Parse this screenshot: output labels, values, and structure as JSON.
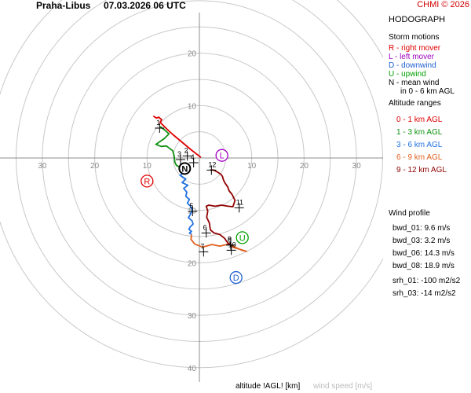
{
  "header": {
    "station": "Praha-Libus",
    "datetime": "07.03.2026 06 UTC",
    "credit": "CHMI © 2026"
  },
  "legend": {
    "title": "HODOGRAPH",
    "storm_motions_title": "Storm motions",
    "storm_motions": [
      {
        "text": "R - right mover",
        "color": "#e00000"
      },
      {
        "text": "L - left mover",
        "color": "#a000c0"
      },
      {
        "text": "D - downwind",
        "color": "#2060d0"
      },
      {
        "text": "U - upwind",
        "color": "#00a000"
      },
      {
        "text": "N - mean wind",
        "color": "#000000"
      },
      {
        "text": "in 0 - 6 km AGL",
        "color": "#000000"
      }
    ],
    "altitude_ranges_title": "Altitude ranges",
    "altitude_ranges": [
      {
        "text": "0 - 1 km AGL",
        "color": "#e00000"
      },
      {
        "text": "1 - 3 km AGL",
        "color": "#109010"
      },
      {
        "text": "3 - 6 km AGL",
        "color": "#2070e0"
      },
      {
        "text": "6 - 9 km AGL",
        "color": "#e06020"
      },
      {
        "text": "9 - 12 km AGL",
        "color": "#900000"
      }
    ]
  },
  "wind_profile": {
    "title": "Wind profile",
    "items": [
      "bwd_01: 9.6 m/s",
      "bwd_03: 3.2 m/s",
      "bwd_06: 14.3 m/s",
      "bwd_08: 18.9 m/s",
      "srh_01: -100 m2/s2",
      "srh_03: -14 m2/s2"
    ]
  },
  "footer": {
    "altitude_label": "altitude !AGL! [km]",
    "speed_label": "wind speed [m/s]"
  },
  "chart_data": {
    "type": "scatter",
    "title": "HODOGRAPH",
    "xlabel": "",
    "ylabel": "",
    "rings": [
      5,
      10,
      15,
      20,
      25,
      30,
      35,
      40
    ],
    "ring_labels": [
      10,
      20,
      30,
      40
    ],
    "x_tick_labels": [
      "30",
      "20",
      "10",
      "10",
      "20",
      "30"
    ],
    "x_tick_values": [
      -30,
      -20,
      -10,
      10,
      20,
      30
    ],
    "y_tick_labels": [
      "20",
      "10",
      "10",
      "20",
      "30",
      "40"
    ],
    "y_tick_values": [
      20,
      10,
      -10,
      -20,
      -30,
      -40
    ],
    "xlim": [
      -38,
      38
    ],
    "ylim": [
      -41,
      30
    ],
    "grid": true,
    "segments": [
      {
        "name": "0 - 1 km AGL",
        "color": "#e00000",
        "u": [
          0.3,
          -1.5,
          -3.3,
          -5.1,
          -6.3,
          -6.9,
          -7.5,
          -7.2,
          -7.8,
          -8.2,
          -8.8
        ],
        "v": [
          0.1,
          1.5,
          3.0,
          4.5,
          5.6,
          6.2,
          6.8,
          7.3,
          7.8,
          7.6,
          8.0
        ]
      },
      {
        "name": "1 - 3 km AGL",
        "color": "#109010",
        "u": [
          -7.5,
          -6.6,
          -5.8,
          -6.7,
          -8.3,
          -7.3,
          -6.3,
          -5.8,
          -5.1,
          -4.8,
          -4.7,
          -4.4,
          -3.5
        ],
        "v": [
          6.0,
          5.3,
          4.6,
          3.7,
          2.6,
          2.2,
          2.3,
          1.9,
          1.4,
          0.3,
          -0.8,
          -1.4,
          -1.9
        ]
      },
      {
        "name": "3 - 6 km AGL",
        "color": "#2070e0",
        "u": [
          -3.5,
          -2.9,
          -3.7,
          -2.6,
          -3.3,
          -2.2,
          -3.0,
          -2.4,
          -2.6,
          -1.9,
          -2.3,
          -1.6,
          -1.4,
          -1.7,
          -2.1,
          -1.4,
          -1.2,
          -1.8,
          -2.0,
          -1.5,
          -1.9,
          -1.6,
          -1.5
        ],
        "v": [
          -1.9,
          -2.8,
          -3.3,
          -4.0,
          -4.7,
          -5.2,
          -5.8,
          -6.5,
          -7.3,
          -7.9,
          -8.6,
          -9.3,
          -10.0,
          -10.7,
          -11.4,
          -12.0,
          -12.6,
          -13.2,
          -13.6,
          -14.0,
          -14.3,
          -14.5,
          -14.6
        ]
      },
      {
        "name": "6 - 9 km AGL",
        "color": "#e06020",
        "u": [
          -1.5,
          -1.6,
          -0.9,
          0.6,
          2.4,
          3.9,
          4.8,
          5.9,
          6.3,
          7.7,
          9.0,
          8.1,
          7.0,
          6.0
        ],
        "v": [
          -14.6,
          -15.5,
          -16.4,
          -17.0,
          -16.5,
          -16.8,
          -16.6,
          -16.3,
          -17.0,
          -17.4,
          -17.8,
          -17.6,
          -17.1,
          -16.6
        ]
      },
      {
        "name": "9 - 12 km AGL",
        "color": "#900000",
        "u": [
          6.0,
          5.5,
          4.8,
          3.9,
          2.8,
          2.1,
          1.9,
          1.4,
          1.6,
          1.3,
          1.8,
          3.0,
          4.2,
          5.5,
          6.4,
          6.8,
          6.2,
          5.7,
          5.4,
          4.9,
          4.6,
          4.4,
          4.1,
          3.5,
          2.7,
          2.1
        ],
        "v": [
          -16.6,
          -16.3,
          -15.3,
          -14.6,
          -14.3,
          -13.7,
          -12.4,
          -11.3,
          -10.1,
          -9.2,
          -9.0,
          -9.2,
          -9.0,
          -9.2,
          -9.3,
          -8.1,
          -6.9,
          -6.3,
          -5.5,
          -4.8,
          -4.2,
          -3.5,
          -3.1,
          -2.7,
          -2.3,
          -2.3
        ]
      }
    ],
    "height_markers": [
      {
        "label": "1",
        "u": -7.6,
        "v": 5.7
      },
      {
        "label": "2",
        "u": -2.3,
        "v": 0.4
      },
      {
        "label": "3",
        "u": -3.6,
        "v": -0.3
      },
      {
        "label": "4",
        "u": -1.1,
        "v": -0.9
      },
      {
        "label": "5",
        "u": -1.3,
        "v": -10.2
      },
      {
        "label": "6",
        "u": 1.3,
        "v": -14.3
      },
      {
        "label": "7",
        "u": 0.8,
        "v": -17.9
      },
      {
        "label": "8",
        "u": 6.0,
        "v": -16.6
      },
      {
        "label": "9",
        "u": 6.0,
        "v": -16.6
      },
      {
        "label": "10",
        "u": 6.1,
        "v": -17.6
      },
      {
        "label": "11",
        "u": 7.6,
        "v": -9.5
      },
      {
        "label": "12",
        "u": 2.3,
        "v": -2.3
      }
    ],
    "storm_motions": [
      {
        "label": "R",
        "u": -10.0,
        "v": -4.4,
        "color": "#e00000"
      },
      {
        "label": "L",
        "u": 4.3,
        "v": 0.5,
        "color": "#a000c0"
      },
      {
        "label": "D",
        "u": 7.0,
        "v": -22.8,
        "color": "#2060d0"
      },
      {
        "label": "U",
        "u": 8.2,
        "v": -15.2,
        "color": "#00a000"
      },
      {
        "label": "N",
        "u": -2.8,
        "v": -2.0,
        "color": "#000000"
      }
    ]
  }
}
